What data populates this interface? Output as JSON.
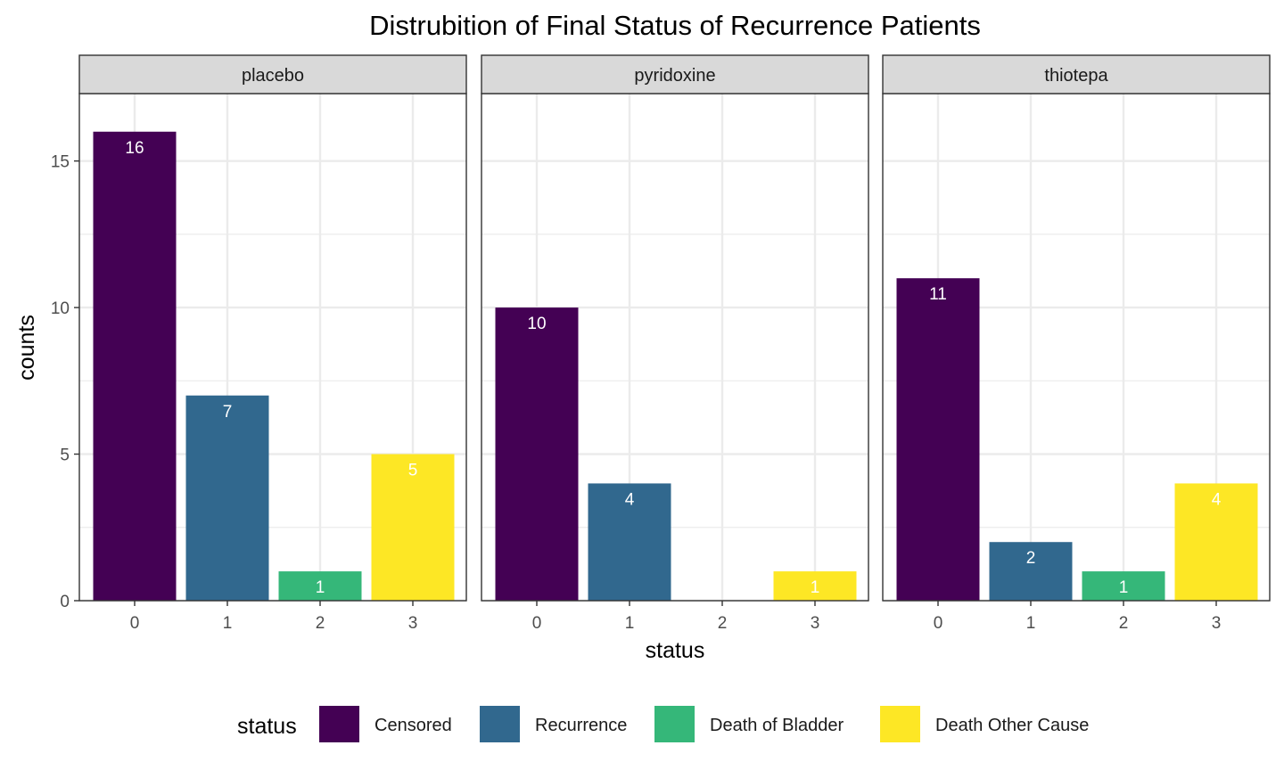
{
  "chart_data": {
    "type": "bar",
    "title": "Distrubition of Final Status of Recurrence Patients",
    "xlabel": "status",
    "ylabel": "counts",
    "ylim": [
      0,
      17.3
    ],
    "y_ticks": [
      0,
      5,
      10,
      15
    ],
    "x_categories": [
      "0",
      "1",
      "2",
      "3"
    ],
    "grid": true,
    "legend": {
      "title": "status",
      "position": "bottom",
      "entries": [
        {
          "label": "Censored",
          "color": "#440154"
        },
        {
          "label": "Recurrence",
          "color": "#31688e"
        },
        {
          "label": "Death of Bladder",
          "color": "#35b779"
        },
        {
          "label": "Death Other Cause",
          "color": "#fde725"
        }
      ]
    },
    "panels": [
      {
        "name": "placebo",
        "values": [
          16,
          7,
          1,
          5
        ]
      },
      {
        "name": "pyridoxine",
        "values": [
          10,
          4,
          0,
          1
        ]
      },
      {
        "name": "thiotepa",
        "values": [
          11,
          2,
          1,
          4
        ]
      }
    ]
  }
}
